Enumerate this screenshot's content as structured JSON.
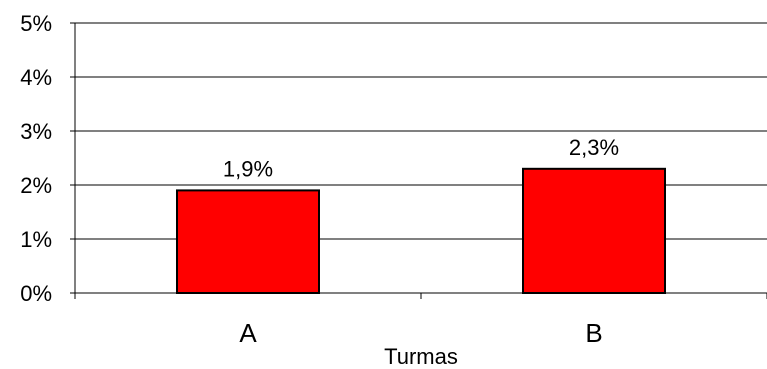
{
  "chart_data": {
    "type": "bar",
    "categories": [
      "A",
      "B"
    ],
    "values": [
      1.9,
      2.3
    ],
    "value_labels": [
      "1,9%",
      "2,3%"
    ],
    "xlabel": "Turmas",
    "ylabel": "",
    "ylim": [
      0,
      5
    ],
    "yticks": [
      0,
      1,
      2,
      3,
      4,
      5
    ],
    "ytick_labels": [
      "0%",
      "1%",
      "2%",
      "3%",
      "4%",
      "5%"
    ],
    "grid": true,
    "legend": "none",
    "colors": {
      "bar": "#ff0000",
      "bar_edge": "#000000",
      "grid": "#000000"
    }
  }
}
